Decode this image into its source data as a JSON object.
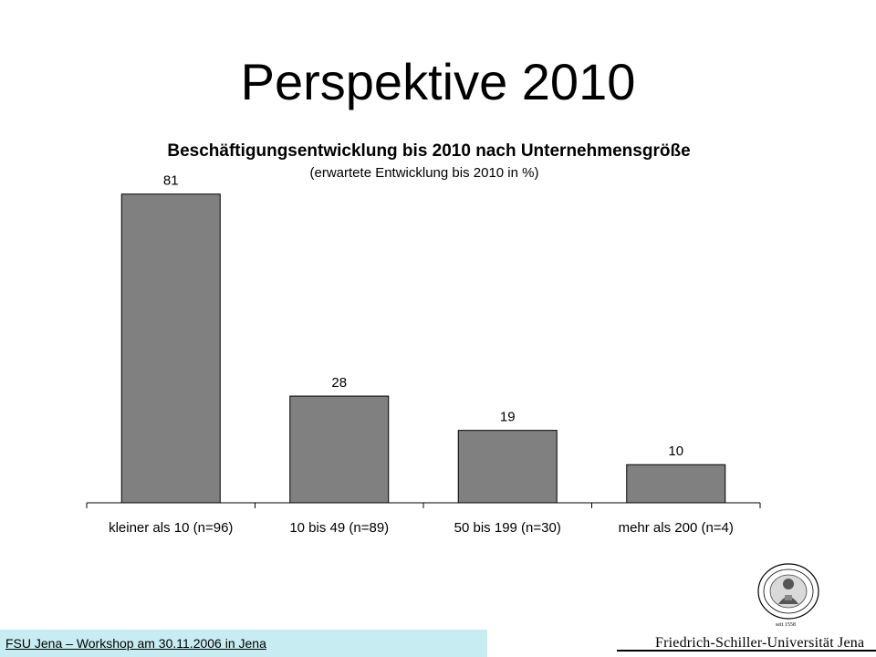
{
  "slide": {
    "title": "Perspektive 2010"
  },
  "chart_data": {
    "type": "bar",
    "title": "Beschäftigungsentwicklung bis 2010 nach Unternehmensgröße",
    "subtitle": "(erwartete Entwicklung bis 2010 in %)",
    "categories": [
      "kleiner als 10 (n=96)",
      "10 bis 49 (n=89)",
      "50 bis 199 (n=30)",
      "mehr als 200 (n=4)"
    ],
    "values": [
      81,
      28,
      19,
      10
    ],
    "data_labels": [
      "81",
      "28",
      "19",
      "10"
    ],
    "ylim": [
      0,
      85
    ],
    "grid": false,
    "legend": "none",
    "bar_color": "#808080",
    "xlabel": "",
    "ylabel": ""
  },
  "footer": {
    "text": "FSU Jena – Workshop am 30.11.2006 in Jena",
    "university": "Friedrich-Schiller-Universität Jena",
    "seal_caption": "seit 1558",
    "bar_color": "#c7edf2"
  }
}
